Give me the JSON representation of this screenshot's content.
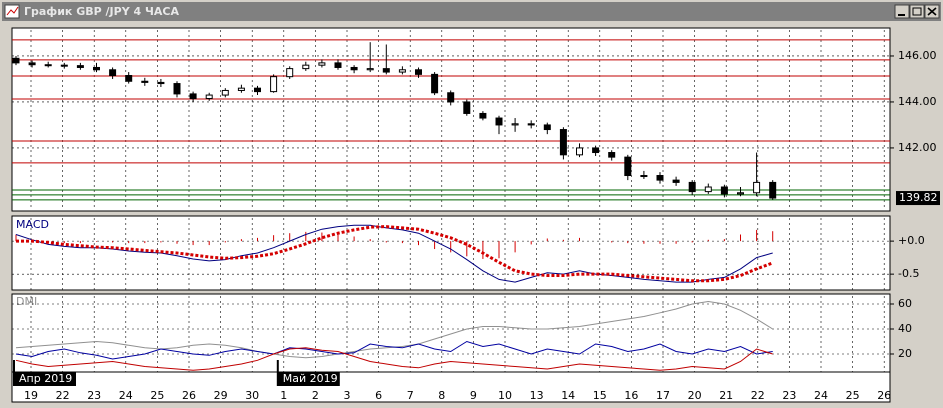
{
  "window": {
    "title": "График GBP /JPY  4 ЧАСА"
  },
  "x_axis": {
    "labels": [
      "19",
      "22",
      "23",
      "24",
      "25",
      "26",
      "29",
      "30",
      "1",
      "2",
      "3",
      "6",
      "7",
      "8",
      "9",
      "10",
      "13",
      "14",
      "15",
      "16",
      "17",
      "20",
      "21",
      "22",
      "23",
      "24",
      "25",
      "26"
    ],
    "months": [
      {
        "label": "Апр 2019",
        "at": 0
      },
      {
        "label": "Май 2019",
        "at": 8
      }
    ]
  },
  "chart_data": [
    {
      "type": "candlestick",
      "open": [
        145.9,
        145.7,
        145.62,
        145.6,
        145.58,
        145.5,
        145.4,
        145.15,
        144.9,
        144.85,
        144.8,
        144.35,
        144.15,
        144.3,
        144.5,
        144.6,
        144.45,
        145.1,
        145.45,
        145.6,
        145.7,
        145.5,
        145.4,
        145.45,
        145.3,
        145.4,
        145.2,
        144.4,
        144.0,
        143.5,
        143.3,
        143.0,
        143.05,
        143.0,
        142.8,
        141.7,
        142.0,
        141.8,
        141.6,
        140.8,
        140.8,
        140.6,
        140.5,
        140.1,
        140.3,
        140.0,
        140.05,
        140.5
      ],
      "high": [
        146.0,
        145.8,
        145.75,
        145.7,
        145.7,
        145.7,
        145.5,
        145.3,
        145.05,
        145.0,
        144.9,
        144.45,
        144.4,
        144.6,
        144.75,
        144.7,
        145.2,
        145.55,
        145.75,
        145.85,
        145.85,
        145.6,
        146.6,
        146.5,
        145.55,
        145.5,
        145.3,
        144.5,
        144.1,
        143.6,
        143.4,
        143.3,
        143.2,
        143.1,
        142.9,
        142.2,
        142.1,
        141.9,
        141.7,
        141.0,
        140.95,
        140.75,
        140.6,
        140.45,
        140.4,
        140.3,
        141.8,
        140.6
      ],
      "low": [
        145.6,
        145.5,
        145.5,
        145.45,
        145.4,
        145.3,
        145.0,
        144.8,
        144.7,
        144.65,
        144.2,
        144.0,
        144.05,
        144.2,
        144.4,
        144.3,
        144.4,
        145.0,
        145.35,
        145.5,
        145.4,
        145.25,
        145.3,
        145.2,
        145.2,
        145.05,
        144.3,
        143.85,
        143.4,
        143.2,
        142.6,
        142.7,
        142.85,
        142.6,
        141.5,
        141.6,
        141.65,
        141.45,
        140.6,
        140.65,
        140.45,
        140.35,
        139.95,
        140.0,
        139.85,
        139.9,
        139.9,
        139.75
      ],
      "close": [
        145.7,
        145.62,
        145.6,
        145.58,
        145.5,
        145.4,
        145.15,
        144.9,
        144.85,
        144.8,
        144.35,
        144.15,
        144.3,
        144.5,
        144.6,
        144.45,
        145.1,
        145.45,
        145.6,
        145.7,
        145.5,
        145.4,
        145.45,
        145.3,
        145.4,
        145.2,
        144.4,
        144.0,
        143.5,
        143.3,
        143.0,
        143.05,
        143.0,
        142.8,
        141.7,
        142.0,
        141.8,
        141.6,
        140.8,
        140.8,
        140.6,
        140.5,
        140.1,
        140.3,
        140.0,
        140.05,
        140.5,
        139.82
      ],
      "ylim": [
        139.3,
        147.13
      ],
      "yticks": [
        {
          "value": 142,
          "label": "142.00"
        },
        {
          "value": 144,
          "label": "144.00"
        },
        {
          "value": 146,
          "label": "146.00"
        }
      ],
      "last_price": 139.82,
      "levels": [
        {
          "value": 146.7,
          "color": "#c00000"
        },
        {
          "value": 145.83,
          "color": "#c00000"
        },
        {
          "value": 145.13,
          "color": "#c00000"
        },
        {
          "value": 144.13,
          "color": "#c00000"
        },
        {
          "value": 142.3,
          "color": "#c00000"
        },
        {
          "value": 141.35,
          "color": "#c00000"
        },
        {
          "value": 140.17,
          "color": "#006400"
        },
        {
          "value": 139.96,
          "color": "#006400"
        },
        {
          "value": 139.74,
          "color": "#006400"
        }
      ],
      "grid": true
    },
    {
      "type": "macd",
      "title": "MACD",
      "macd": [
        0.1,
        0.02,
        -0.05,
        -0.08,
        -0.1,
        -0.1,
        -0.12,
        -0.15,
        -0.17,
        -0.18,
        -0.22,
        -0.27,
        -0.3,
        -0.28,
        -0.22,
        -0.18,
        -0.1,
        0.0,
        0.1,
        0.18,
        0.22,
        0.24,
        0.24,
        0.2,
        0.17,
        0.12,
        0.0,
        -0.12,
        -0.28,
        -0.45,
        -0.58,
        -0.62,
        -0.55,
        -0.48,
        -0.5,
        -0.45,
        -0.5,
        -0.52,
        -0.55,
        -0.58,
        -0.6,
        -0.62,
        -0.62,
        -0.58,
        -0.55,
        -0.42,
        -0.25,
        -0.18
      ],
      "signal": [
        0.0,
        0.0,
        -0.02,
        -0.05,
        -0.07,
        -0.09,
        -0.1,
        -0.12,
        -0.14,
        -0.16,
        -0.18,
        -0.21,
        -0.24,
        -0.26,
        -0.25,
        -0.23,
        -0.19,
        -0.12,
        -0.04,
        0.05,
        0.12,
        0.17,
        0.21,
        0.22,
        0.2,
        0.18,
        0.12,
        0.05,
        -0.05,
        -0.18,
        -0.32,
        -0.45,
        -0.5,
        -0.52,
        -0.52,
        -0.5,
        -0.5,
        -0.5,
        -0.52,
        -0.54,
        -0.56,
        -0.58,
        -0.6,
        -0.6,
        -0.58,
        -0.52,
        -0.42,
        -0.33
      ],
      "histogram": [
        0.1,
        0.02,
        -0.03,
        -0.03,
        -0.03,
        -0.01,
        -0.02,
        -0.03,
        -0.03,
        -0.02,
        -0.04,
        -0.06,
        -0.06,
        -0.02,
        0.03,
        0.05,
        0.09,
        0.12,
        0.14,
        0.13,
        0.1,
        0.07,
        0.03,
        -0.02,
        -0.03,
        -0.06,
        -0.12,
        -0.17,
        -0.23,
        -0.27,
        -0.26,
        -0.17,
        -0.05,
        0.04,
        0.02,
        0.05,
        0,
        -0.02,
        -0.03,
        -0.04,
        -0.04,
        -0.04,
        -0.02,
        0.02,
        0.03,
        0.1,
        0.17,
        0.15
      ],
      "colors": {
        "macd": "#000080",
        "signal": "#d40000",
        "histogram": "#d40000"
      },
      "ylim": [
        -0.74,
        0.35
      ],
      "yticks": [
        {
          "value": 0,
          "label": "+0.0"
        },
        {
          "value": -0.5,
          "label": "-0.5"
        }
      ],
      "grid": true
    },
    {
      "type": "dmi",
      "title": "DMI",
      "adx": [
        25,
        26,
        27,
        28,
        29,
        30,
        29,
        27,
        25,
        24,
        25,
        27,
        28,
        27,
        25,
        22,
        20,
        18,
        17,
        18,
        20,
        22,
        24,
        25,
        26,
        28,
        32,
        36,
        40,
        42,
        42,
        41,
        40,
        40,
        41,
        42,
        44,
        46,
        48,
        50,
        53,
        56,
        60,
        62,
        60,
        55,
        48,
        40
      ],
      "plus_di": [
        20,
        18,
        22,
        24,
        21,
        19,
        16,
        18,
        20,
        24,
        22,
        20,
        19,
        22,
        24,
        22,
        20,
        25,
        24,
        22,
        20,
        21,
        28,
        26,
        25,
        28,
        24,
        22,
        30,
        26,
        28,
        24,
        20,
        24,
        22,
        20,
        28,
        26,
        22,
        24,
        28,
        22,
        20,
        24,
        22,
        26,
        20,
        22
      ],
      "minus_di": [
        15,
        12,
        10,
        11,
        12,
        13,
        14,
        12,
        10,
        9,
        8,
        7,
        8,
        10,
        12,
        15,
        20,
        24,
        25,
        23,
        22,
        18,
        14,
        12,
        10,
        9,
        12,
        14,
        13,
        12,
        11,
        10,
        9,
        8,
        10,
        12,
        11,
        10,
        9,
        8,
        7,
        8,
        10,
        9,
        8,
        14,
        24,
        20
      ],
      "colors": {
        "adx": "#909090",
        "plus_di": "#0000a0",
        "minus_di": "#c00000"
      },
      "ylim": [
        5.6,
        66.4
      ],
      "yticks": [
        20,
        40,
        60
      ],
      "grid": true
    }
  ]
}
